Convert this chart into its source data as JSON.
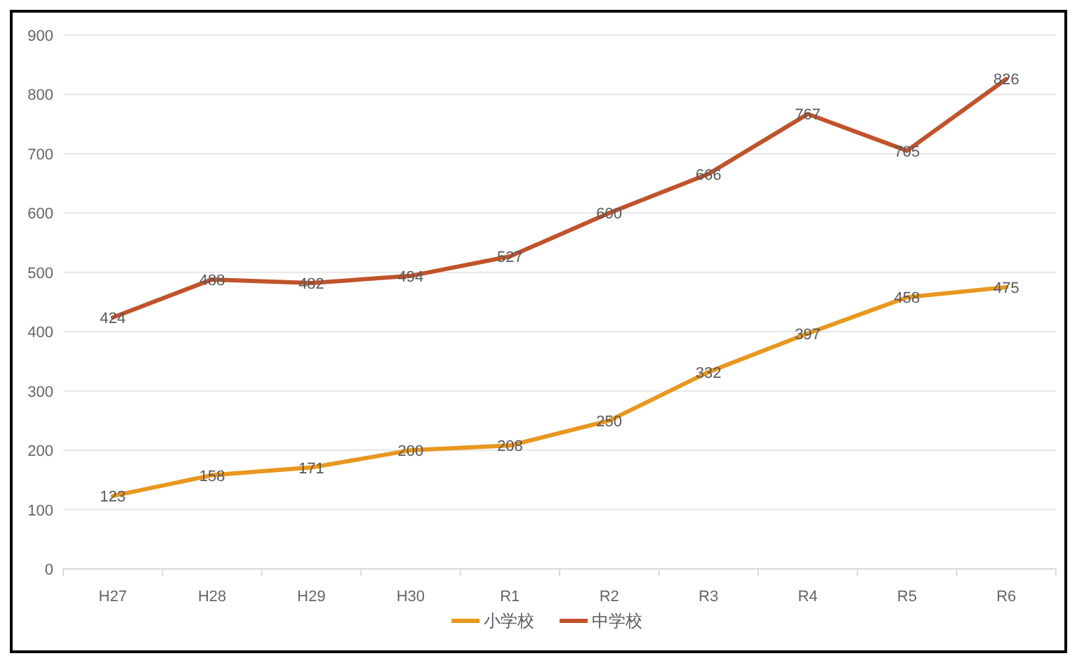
{
  "chart_data": {
    "type": "line",
    "categories": [
      "H27",
      "H28",
      "H29",
      "H30",
      "R1",
      "R2",
      "R3",
      "R4",
      "R5",
      "R6"
    ],
    "series": [
      {
        "name": "小学校",
        "color": "#e8971f",
        "values": [
          123,
          158,
          171,
          200,
          208,
          250,
          332,
          397,
          458,
          475
        ]
      },
      {
        "name": "中学校",
        "color": "#c0532b",
        "values": [
          424,
          488,
          482,
          494,
          527,
          600,
          666,
          767,
          705,
          826
        ]
      }
    ],
    "ylim": [
      0,
      900
    ],
    "yticks": [
      0,
      100,
      200,
      300,
      400,
      500,
      600,
      700,
      800,
      900
    ],
    "grid": "y",
    "legend": "bottom",
    "data_labels": true,
    "marker": "none",
    "line_style": "solid"
  }
}
